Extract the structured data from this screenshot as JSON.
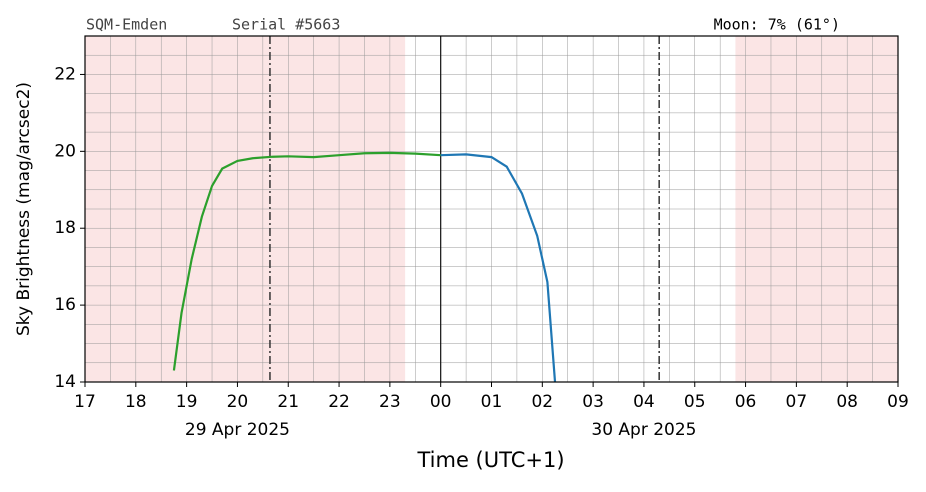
{
  "chart_data": {
    "type": "line",
    "header_left": "SQM-Emden",
    "header_serial": "Serial #5663",
    "header_right": "Moon: 7% (61°)",
    "ylabel": "Sky Brightness (mag/arcsec2)",
    "xlabel": "Time (UTC+1)",
    "xlim": [
      17,
      33
    ],
    "ylim": [
      14,
      23
    ],
    "xticks": [
      {
        "value": 17,
        "label": "17"
      },
      {
        "value": 18,
        "label": "18"
      },
      {
        "value": 19,
        "label": "19"
      },
      {
        "value": 20,
        "label": "20"
      },
      {
        "value": 21,
        "label": "21"
      },
      {
        "value": 22,
        "label": "22"
      },
      {
        "value": 23,
        "label": "23"
      },
      {
        "value": 24,
        "label": "00"
      },
      {
        "value": 25,
        "label": "01"
      },
      {
        "value": 26,
        "label": "02"
      },
      {
        "value": 27,
        "label": "03"
      },
      {
        "value": 28,
        "label": "04"
      },
      {
        "value": 29,
        "label": "05"
      },
      {
        "value": 30,
        "label": "06"
      },
      {
        "value": 31,
        "label": "07"
      },
      {
        "value": 32,
        "label": "08"
      },
      {
        "value": 33,
        "label": "09"
      }
    ],
    "yticks": [
      14,
      16,
      18,
      20,
      22
    ],
    "minor_step_x": 0.5,
    "minor_step_y": 0.5,
    "grid": true,
    "date_labels": [
      {
        "value": 20,
        "label": "29 Apr 2025"
      },
      {
        "value": 28,
        "label": "30 Apr 2025"
      }
    ],
    "shaded_spans": [
      [
        17,
        23.3
      ],
      [
        29.8,
        33
      ]
    ],
    "shade_color": "#fbe5e5",
    "dashdot_lines": [
      20.64,
      28.3
    ],
    "midnight_line": 24,
    "series": [
      {
        "color": "#2ca02c",
        "x": [
          18.75,
          18.9,
          19.1,
          19.3,
          19.5,
          19.7,
          20.0,
          20.3,
          20.7,
          21.0,
          21.5,
          22.0,
          22.5,
          23.0,
          23.5,
          24.0
        ],
        "values": [
          14.3,
          15.8,
          17.2,
          18.3,
          19.1,
          19.55,
          19.75,
          19.82,
          19.86,
          19.87,
          19.85,
          19.9,
          19.95,
          19.96,
          19.94,
          19.9
        ]
      },
      {
        "color": "#1f77b4",
        "x": [
          24.0,
          24.5,
          25.0,
          25.3,
          25.6,
          25.9,
          26.1,
          26.25
        ],
        "values": [
          19.9,
          19.92,
          19.85,
          19.6,
          18.9,
          17.8,
          16.6,
          14.0
        ]
      }
    ]
  }
}
